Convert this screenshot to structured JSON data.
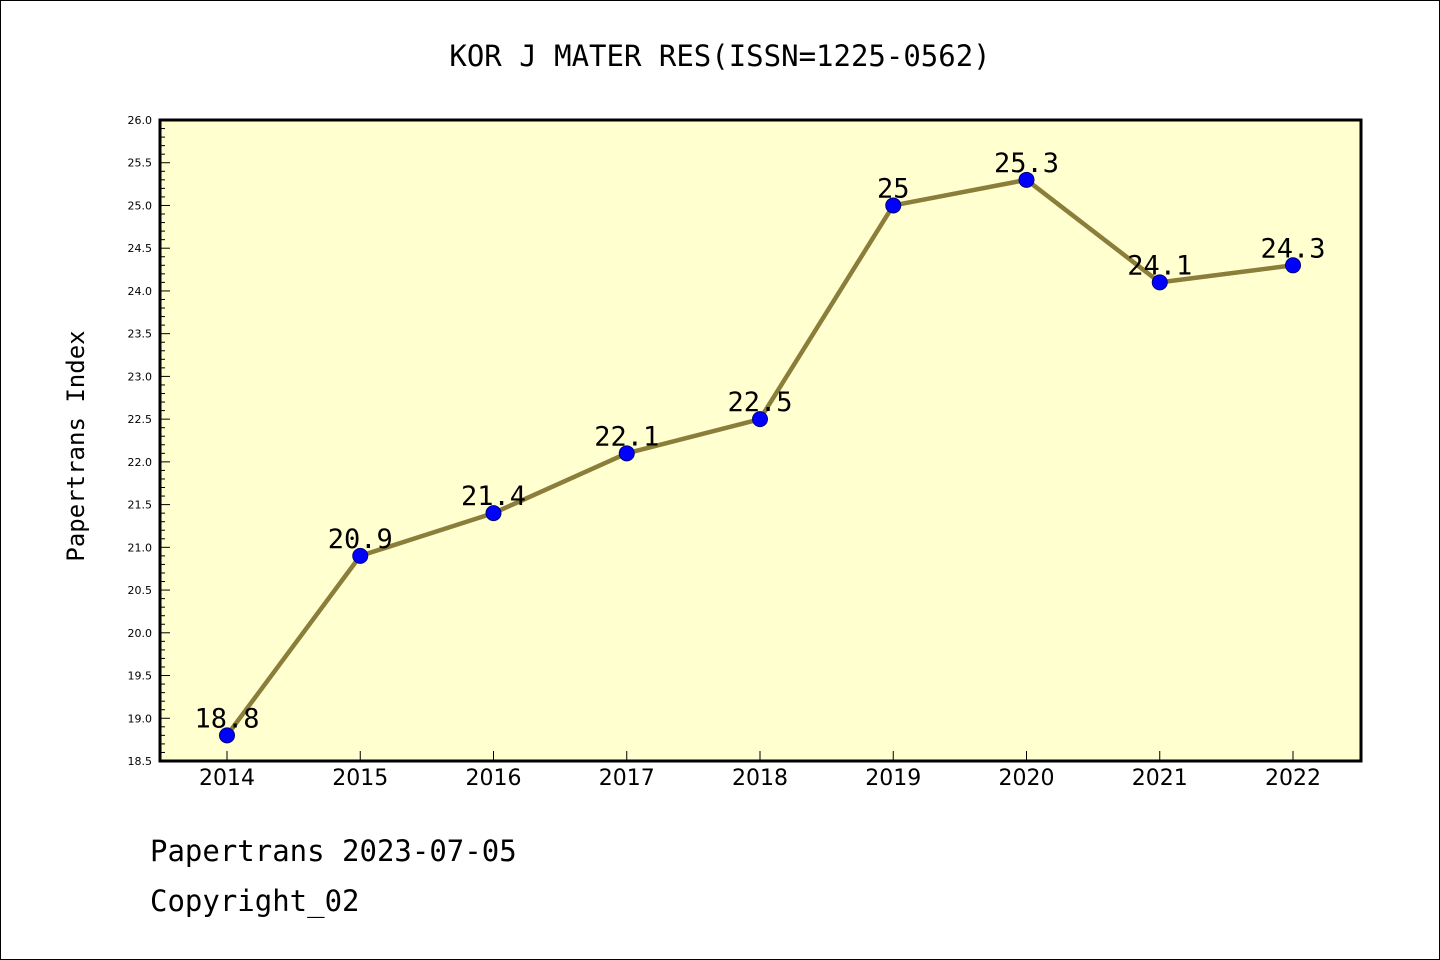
{
  "chart_data": {
    "type": "line",
    "title": "KOR J MATER RES(ISSN=1225-0562)",
    "xlabel": "",
    "ylabel": "Papertrans Index",
    "categories": [
      "2014",
      "2015",
      "2016",
      "2017",
      "2018",
      "2019",
      "2020",
      "2021",
      "2022"
    ],
    "values": [
      18.8,
      20.9,
      21.4,
      22.1,
      22.5,
      25,
      25.3,
      24.1,
      24.3
    ],
    "data_labels": [
      "18.8",
      "20.9",
      "21.4",
      "22.1",
      "22.5",
      "25",
      "25.3",
      "24.1",
      "24.3"
    ],
    "ylim": [
      18.5,
      26.0
    ],
    "yticks": [
      "18.5",
      "19.0",
      "19.5",
      "20.0",
      "20.5",
      "21.0",
      "21.5",
      "22.0",
      "22.5",
      "23.0",
      "23.5",
      "24.0",
      "24.5",
      "25.0",
      "25.5",
      "26.0"
    ],
    "grid": false,
    "legend": "none",
    "colors": {
      "plot_background": "#ffffd0",
      "line": "#8b7d3a",
      "marker": "#0000ff",
      "marker_edge": "#000080"
    }
  },
  "footer": {
    "line1": "Papertrans 2023-07-05",
    "line2": "Copyright_02"
  }
}
